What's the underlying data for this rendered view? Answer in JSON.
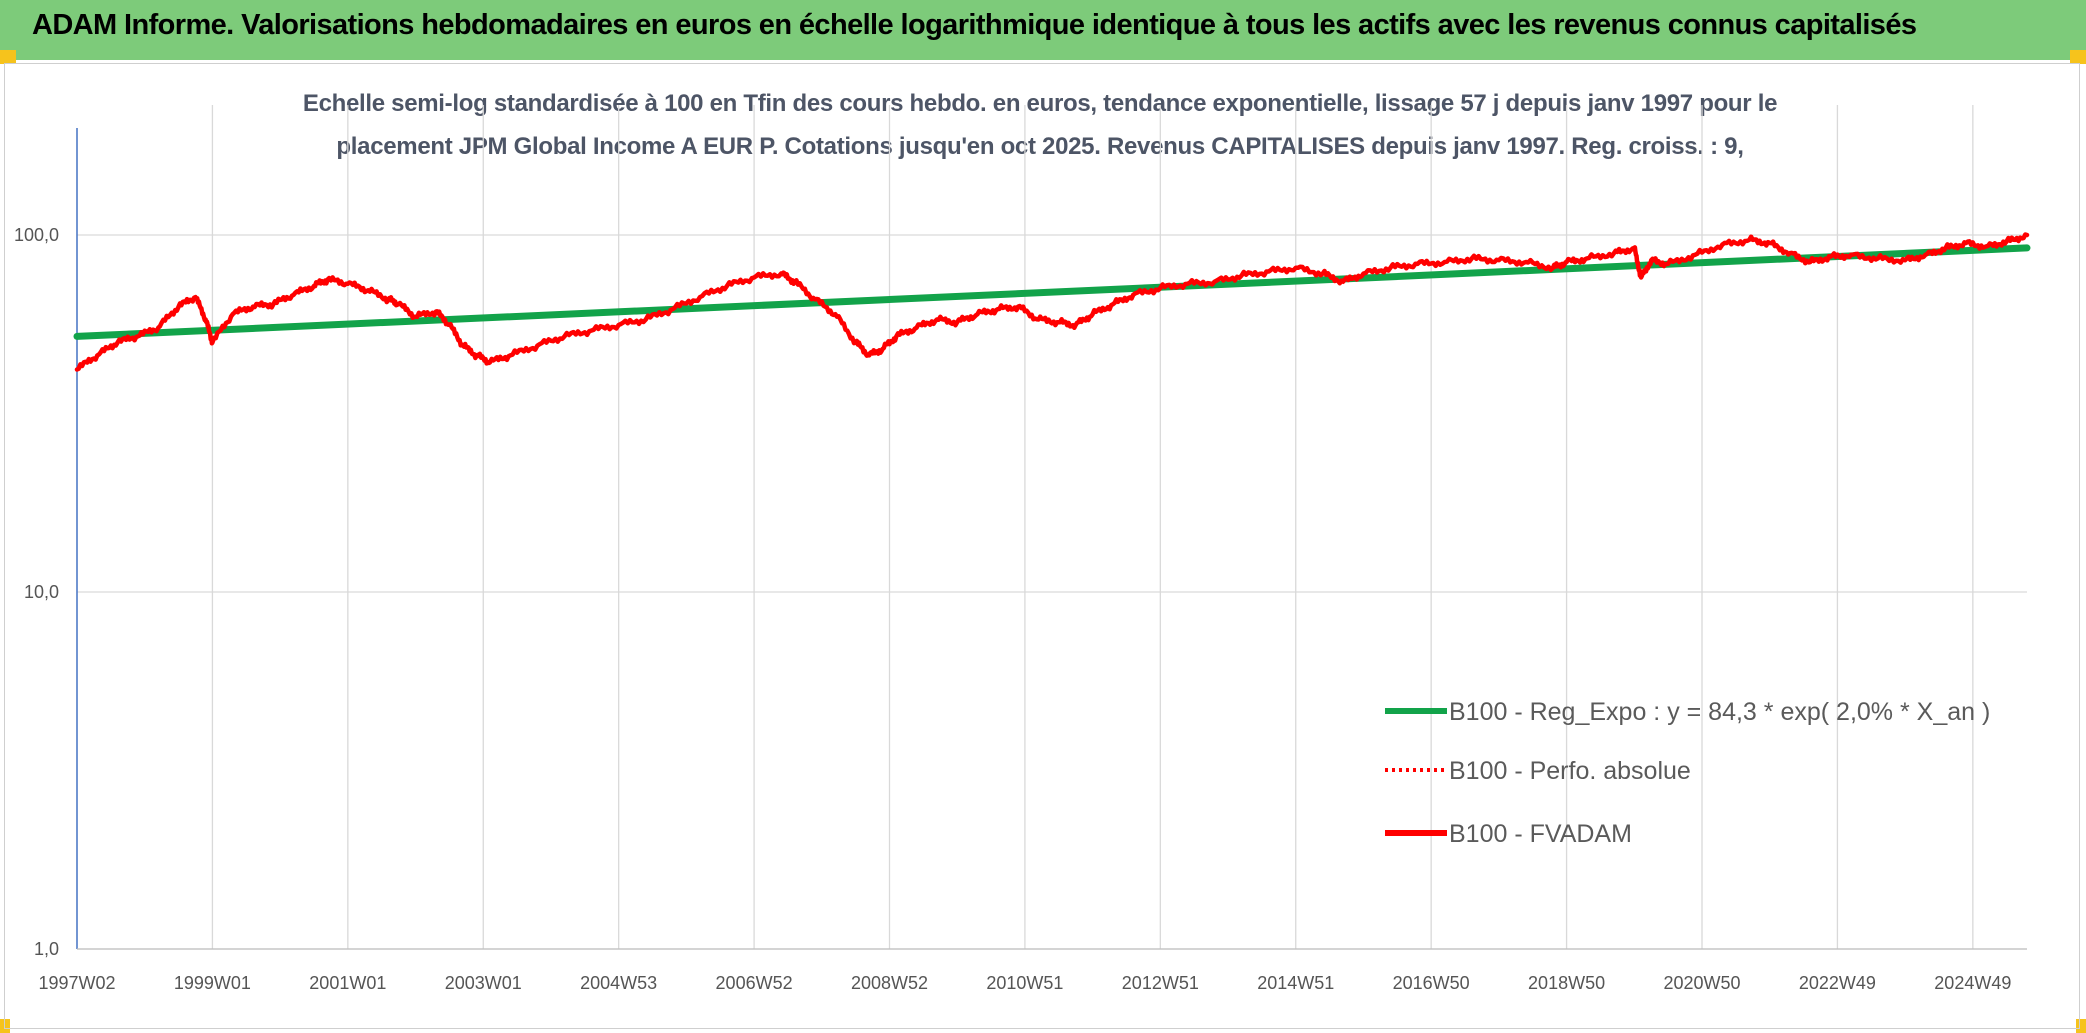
{
  "banner": {
    "title": "ADAM Informe. Valorisations hebdomadaires en euros en échelle logarithmique identique à tous les actifs avec les revenus connus capitalisés"
  },
  "colors": {
    "banner": "#7dcb7a",
    "corner": "#f6c31c",
    "fvadam": "#ff0000",
    "regression": "#12a34a",
    "perfo": "#ff0000",
    "axis": "#4472c4",
    "grid": "#d9d9d9"
  },
  "chart_data": {
    "type": "line",
    "title_line1": "Echelle semi-log standardisée à 100 en Tfin des cours hebdo. en euros, tendance exponentielle, lissage 57 j depuis janv 1997 pour le",
    "title_line2": "placement JPM Global Income A EUR P. Cotations jusqu'en oct 2025. Revenus CAPITALISES depuis janv 1997. Reg. croiss. : 9,",
    "yscale": "log",
    "ylim": [
      1,
      200
    ],
    "y_ticks": [
      1,
      10,
      100
    ],
    "y_tick_labels": [
      "1,0",
      "10,0",
      "100,0"
    ],
    "xlim": [
      1997.0,
      2025.8
    ],
    "x_tick_labels": [
      "1997W02",
      "1999W01",
      "2001W01",
      "2003W01",
      "2004W53",
      "2006W52",
      "2008W52",
      "2010W51",
      "2012W51",
      "2014W51",
      "2016W50",
      "2018W50",
      "2020W50",
      "2022W49",
      "2024W49"
    ],
    "x_tick_values": [
      1997.0,
      1999.0,
      2001.0,
      2003.0,
      2005.0,
      2007.0,
      2009.0,
      2011.0,
      2013.0,
      2015.0,
      2017.0,
      2019.0,
      2021.0,
      2023.0,
      2025.0
    ],
    "grid": "vertical and horizontal",
    "legend_position": "bottom-right",
    "series": [
      {
        "name": "B100 - Reg_Expo : y = 84,3 * exp( 2,0% *  X_an )",
        "style": "solid-thick",
        "x": [
          1997.0,
          2025.8
        ],
        "y": [
          52.0,
          92.0
        ]
      },
      {
        "name": "B100 - Perfo. absolue",
        "style": "dotted",
        "x": [],
        "y": []
      },
      {
        "name": "B100 - FVADAM",
        "style": "solid",
        "x": [
          1997.0,
          1997.3,
          1997.6,
          1997.9,
          1998.2,
          1998.5,
          1998.75,
          1998.9,
          1999.0,
          1999.3,
          1999.6,
          1999.9,
          2000.2,
          2000.5,
          2000.7,
          2001.0,
          2001.3,
          2001.6,
          2001.75,
          2002.0,
          2002.3,
          2002.5,
          2002.7,
          2002.9,
          2003.1,
          2003.4,
          2003.8,
          2004.2,
          2004.6,
          2005.0,
          2005.4,
          2005.8,
          2006.2,
          2006.6,
          2007.0,
          2007.4,
          2007.6,
          2007.9,
          2008.2,
          2008.5,
          2008.7,
          2008.9,
          2009.1,
          2009.4,
          2009.7,
          2010.0,
          2010.3,
          2010.6,
          2010.9,
          2011.2,
          2011.5,
          2011.75,
          2012.0,
          2012.3,
          2012.6,
          2013.0,
          2013.4,
          2013.8,
          2014.2,
          2014.6,
          2015.0,
          2015.4,
          2015.7,
          2016.0,
          2016.4,
          2016.8,
          2017.2,
          2017.6,
          2018.0,
          2018.4,
          2018.8,
          2019.0,
          2019.3,
          2019.7,
          2020.0,
          2020.1,
          2020.25,
          2020.5,
          2020.9,
          2021.3,
          2021.7,
          2022.0,
          2022.3,
          2022.6,
          2022.9,
          2023.2,
          2023.6,
          2024.0,
          2024.3,
          2024.6,
          2024.9,
          2025.2,
          2025.5,
          2025.8
        ],
        "y": [
          42,
          46,
          50,
          52,
          55,
          63,
          67,
          58,
          50,
          60,
          63,
          64,
          68,
          72,
          75,
          73,
          70,
          66,
          64,
          59,
          61,
          56,
          49,
          46,
          44,
          46,
          49,
          52,
          54,
          56,
          58,
          62,
          67,
          72,
          76,
          78,
          74,
          66,
          60,
          50,
          46,
          48,
          52,
          55,
          58,
          57,
          60,
          62,
          63,
          58,
          57,
          56,
          60,
          64,
          68,
          71,
          73,
          74,
          77,
          79,
          81,
          78,
          74,
          78,
          81,
          83,
          84,
          86,
          85,
          84,
          81,
          84,
          86,
          89,
          92,
          76,
          85,
          83,
          88,
          94,
          97,
          95,
          89,
          84,
          87,
          88,
          86,
          85,
          88,
          92,
          95,
          93,
          96,
          100
        ]
      }
    ]
  },
  "legend": {
    "items": [
      {
        "label": "B100 - Reg_Expo : y = 84,3 * exp( 2,0% *  X_an )"
      },
      {
        "label": "B100 - Perfo. absolue"
      },
      {
        "label": "B100 - FVADAM"
      }
    ]
  }
}
